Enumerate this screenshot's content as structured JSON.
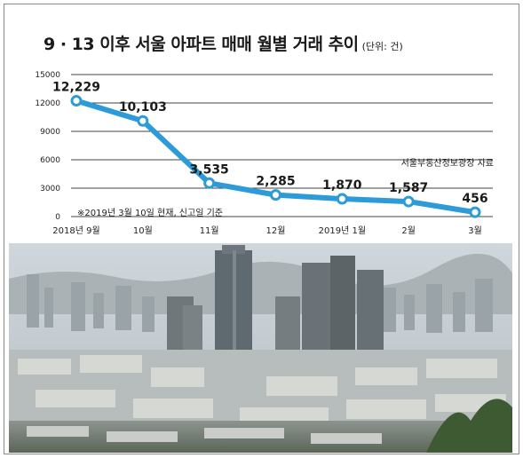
{
  "header": {
    "title": "9 · 13 이후 서울 아파트 매매 월별 거래 추이",
    "unit": "(단위: 건)"
  },
  "source_note": "서울부동산정보광장 자료",
  "footnote": "※2019년 3월 10일 현재, 신고일 기준",
  "colors": {
    "line": "#2c9bd8",
    "marker_fill": "#ffffff",
    "gridline": "#000000"
  },
  "chart_data": {
    "type": "line",
    "title": "9 · 13 이후 서울 아파트 매매 월별 거래 추이",
    "xlabel": "",
    "ylabel": "",
    "categories": [
      "2018년 9월",
      "10월",
      "11월",
      "12월",
      "2019년 1월",
      "2월",
      "3월"
    ],
    "series": [
      {
        "values": [
          12229,
          10103,
          3535,
          2285,
          1870,
          1587,
          456
        ],
        "labels": [
          "12,229",
          "10,103",
          "3,535",
          "2,285",
          "1,870",
          "1,587",
          "456"
        ]
      }
    ],
    "yticks": [
      0,
      3000,
      6000,
      9000,
      12000,
      15000
    ],
    "ylim": [
      0,
      15000
    ],
    "grid": true,
    "legend": "none"
  }
}
